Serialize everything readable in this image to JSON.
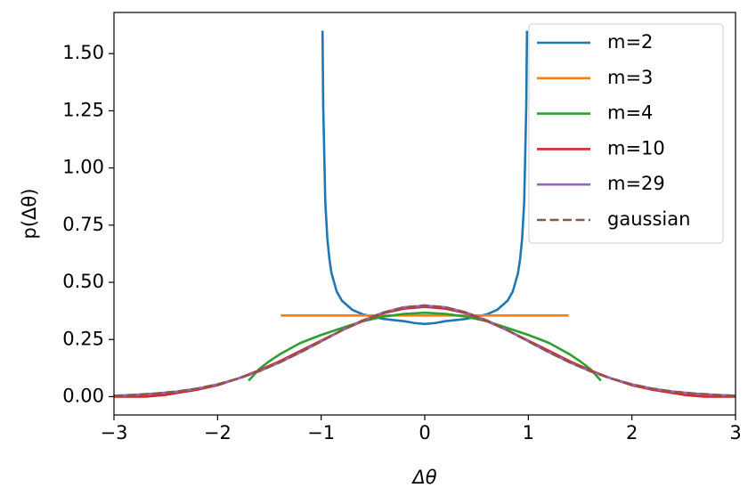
{
  "chart_data": {
    "type": "line",
    "xlabel": "Δθ",
    "ylabel": "p(Δθ)",
    "xlim": [
      -3,
      3
    ],
    "ylim": [
      -0.08,
      1.68
    ],
    "xticks": [
      -3,
      -2,
      -1,
      0,
      1,
      2,
      3
    ],
    "xtick_labels": [
      "−3",
      "−2",
      "−1",
      "0",
      "1",
      "2",
      "3"
    ],
    "yticks": [
      0.0,
      0.25,
      0.5,
      0.75,
      1.0,
      1.25,
      1.5
    ],
    "ytick_labels": [
      "0.00",
      "0.25",
      "0.50",
      "0.75",
      "1.00",
      "1.25",
      "1.50"
    ],
    "grid": false,
    "legend_position": "top-right",
    "series": [
      {
        "name": "m=2",
        "color": "#1f77b4",
        "style": "solid",
        "x": [
          -0.987,
          -0.98,
          -0.96,
          -0.94,
          -0.92,
          -0.9,
          -0.85,
          -0.8,
          -0.75,
          -0.7,
          -0.65,
          -0.6,
          -0.5,
          -0.4,
          -0.3,
          -0.2,
          -0.1,
          0.0,
          0.1,
          0.2,
          0.3,
          0.4,
          0.5,
          0.6,
          0.65,
          0.7,
          0.75,
          0.8,
          0.85,
          0.9,
          0.92,
          0.94,
          0.96,
          0.98,
          0.987
        ],
        "y": [
          1.6,
          1.27,
          0.85,
          0.69,
          0.6,
          0.54,
          0.46,
          0.42,
          0.4,
          0.38,
          0.37,
          0.36,
          0.35,
          0.34,
          0.335,
          0.33,
          0.322,
          0.318,
          0.322,
          0.33,
          0.335,
          0.34,
          0.35,
          0.36,
          0.37,
          0.38,
          0.4,
          0.42,
          0.46,
          0.54,
          0.6,
          0.69,
          0.85,
          1.27,
          1.6
        ]
      },
      {
        "name": "m=3",
        "color": "#ff7f0e",
        "style": "solid",
        "x": [
          -1.39,
          1.39
        ],
        "y": [
          0.355,
          0.355
        ]
      },
      {
        "name": "m=4",
        "color": "#2ca02c",
        "style": "solid",
        "x": [
          -1.7,
          -1.6,
          -1.5,
          -1.4,
          -1.3,
          -1.2,
          -1.0,
          -0.8,
          -0.6,
          -0.4,
          -0.2,
          0.0,
          0.2,
          0.4,
          0.6,
          0.8,
          1.0,
          1.2,
          1.3,
          1.4,
          1.5,
          1.6,
          1.7
        ],
        "y": [
          0.07,
          0.12,
          0.155,
          0.185,
          0.21,
          0.235,
          0.27,
          0.3,
          0.33,
          0.35,
          0.362,
          0.367,
          0.362,
          0.35,
          0.33,
          0.3,
          0.27,
          0.235,
          0.21,
          0.185,
          0.155,
          0.12,
          0.07
        ]
      },
      {
        "name": "m=10",
        "color": "#d62728",
        "style": "solid",
        "x": [
          -3.0,
          -2.7,
          -2.5,
          -2.2,
          -2.0,
          -1.8,
          -1.6,
          -1.4,
          -1.2,
          -1.0,
          -0.8,
          -0.6,
          -0.4,
          -0.2,
          0.0,
          0.2,
          0.4,
          0.6,
          0.8,
          1.0,
          1.2,
          1.4,
          1.6,
          1.8,
          2.0,
          2.2,
          2.5,
          2.7,
          3.0
        ],
        "y": [
          0.0,
          0.0,
          0.008,
          0.03,
          0.05,
          0.08,
          0.115,
          0.155,
          0.2,
          0.245,
          0.29,
          0.33,
          0.365,
          0.385,
          0.393,
          0.385,
          0.365,
          0.33,
          0.29,
          0.245,
          0.2,
          0.155,
          0.115,
          0.08,
          0.05,
          0.03,
          0.008,
          0.0,
          0.0
        ]
      },
      {
        "name": "m=29",
        "color": "#9467bd",
        "style": "solid",
        "x": [
          -3.0,
          -2.8,
          -2.6,
          -2.4,
          -2.2,
          -2.0,
          -1.8,
          -1.6,
          -1.4,
          -1.2,
          -1.0,
          -0.8,
          -0.6,
          -0.4,
          -0.2,
          0.0,
          0.2,
          0.4,
          0.6,
          0.8,
          1.0,
          1.2,
          1.4,
          1.6,
          1.8,
          2.0,
          2.2,
          2.4,
          2.6,
          2.8,
          3.0
        ],
        "y": [
          0.004,
          0.008,
          0.014,
          0.022,
          0.035,
          0.054,
          0.079,
          0.111,
          0.15,
          0.194,
          0.242,
          0.29,
          0.333,
          0.368,
          0.391,
          0.398,
          0.391,
          0.368,
          0.333,
          0.29,
          0.242,
          0.194,
          0.15,
          0.111,
          0.079,
          0.054,
          0.035,
          0.022,
          0.014,
          0.008,
          0.004
        ]
      },
      {
        "name": "gaussian",
        "color": "#8c564b",
        "style": "dashed",
        "x": [
          -3.0,
          -2.8,
          -2.6,
          -2.4,
          -2.2,
          -2.0,
          -1.8,
          -1.6,
          -1.4,
          -1.2,
          -1.0,
          -0.8,
          -0.6,
          -0.4,
          -0.2,
          0.0,
          0.2,
          0.4,
          0.6,
          0.8,
          1.0,
          1.2,
          1.4,
          1.6,
          1.8,
          2.0,
          2.2,
          2.4,
          2.6,
          2.8,
          3.0
        ],
        "y": [
          0.004,
          0.008,
          0.014,
          0.022,
          0.035,
          0.054,
          0.079,
          0.111,
          0.15,
          0.194,
          0.242,
          0.29,
          0.333,
          0.368,
          0.391,
          0.399,
          0.391,
          0.368,
          0.333,
          0.29,
          0.242,
          0.194,
          0.15,
          0.111,
          0.079,
          0.054,
          0.035,
          0.022,
          0.014,
          0.008,
          0.004
        ]
      }
    ]
  }
}
